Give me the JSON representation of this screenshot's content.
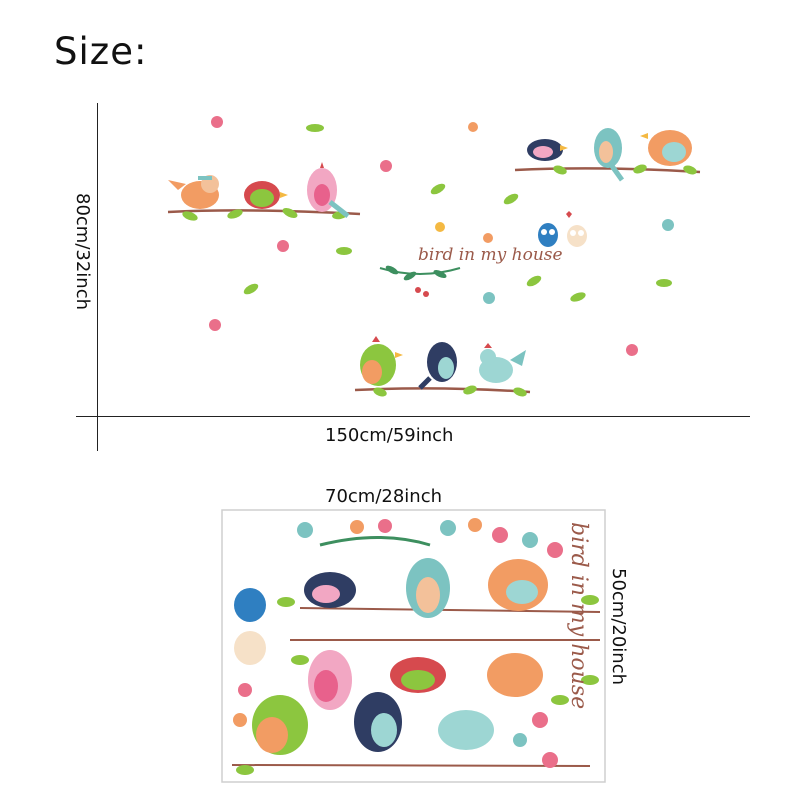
{
  "heading": "Size:",
  "wall": {
    "width_label": "150cm/59inch",
    "height_label": "80cm/32inch",
    "caption": "bird in my house"
  },
  "sheet": {
    "width_label": "70cm/28inch",
    "height_label": "50cm/20inch",
    "caption": "bird in my house"
  },
  "colors": {
    "text": "#111111",
    "axis": "#222222",
    "leaf_green": "#8cc63f",
    "pink": "#ea6f8a",
    "navy": "#2f3d63",
    "teal": "#7cc3c1",
    "orange": "#f29c63",
    "red": "#d64a4e",
    "brown": "#9b5a4a"
  }
}
